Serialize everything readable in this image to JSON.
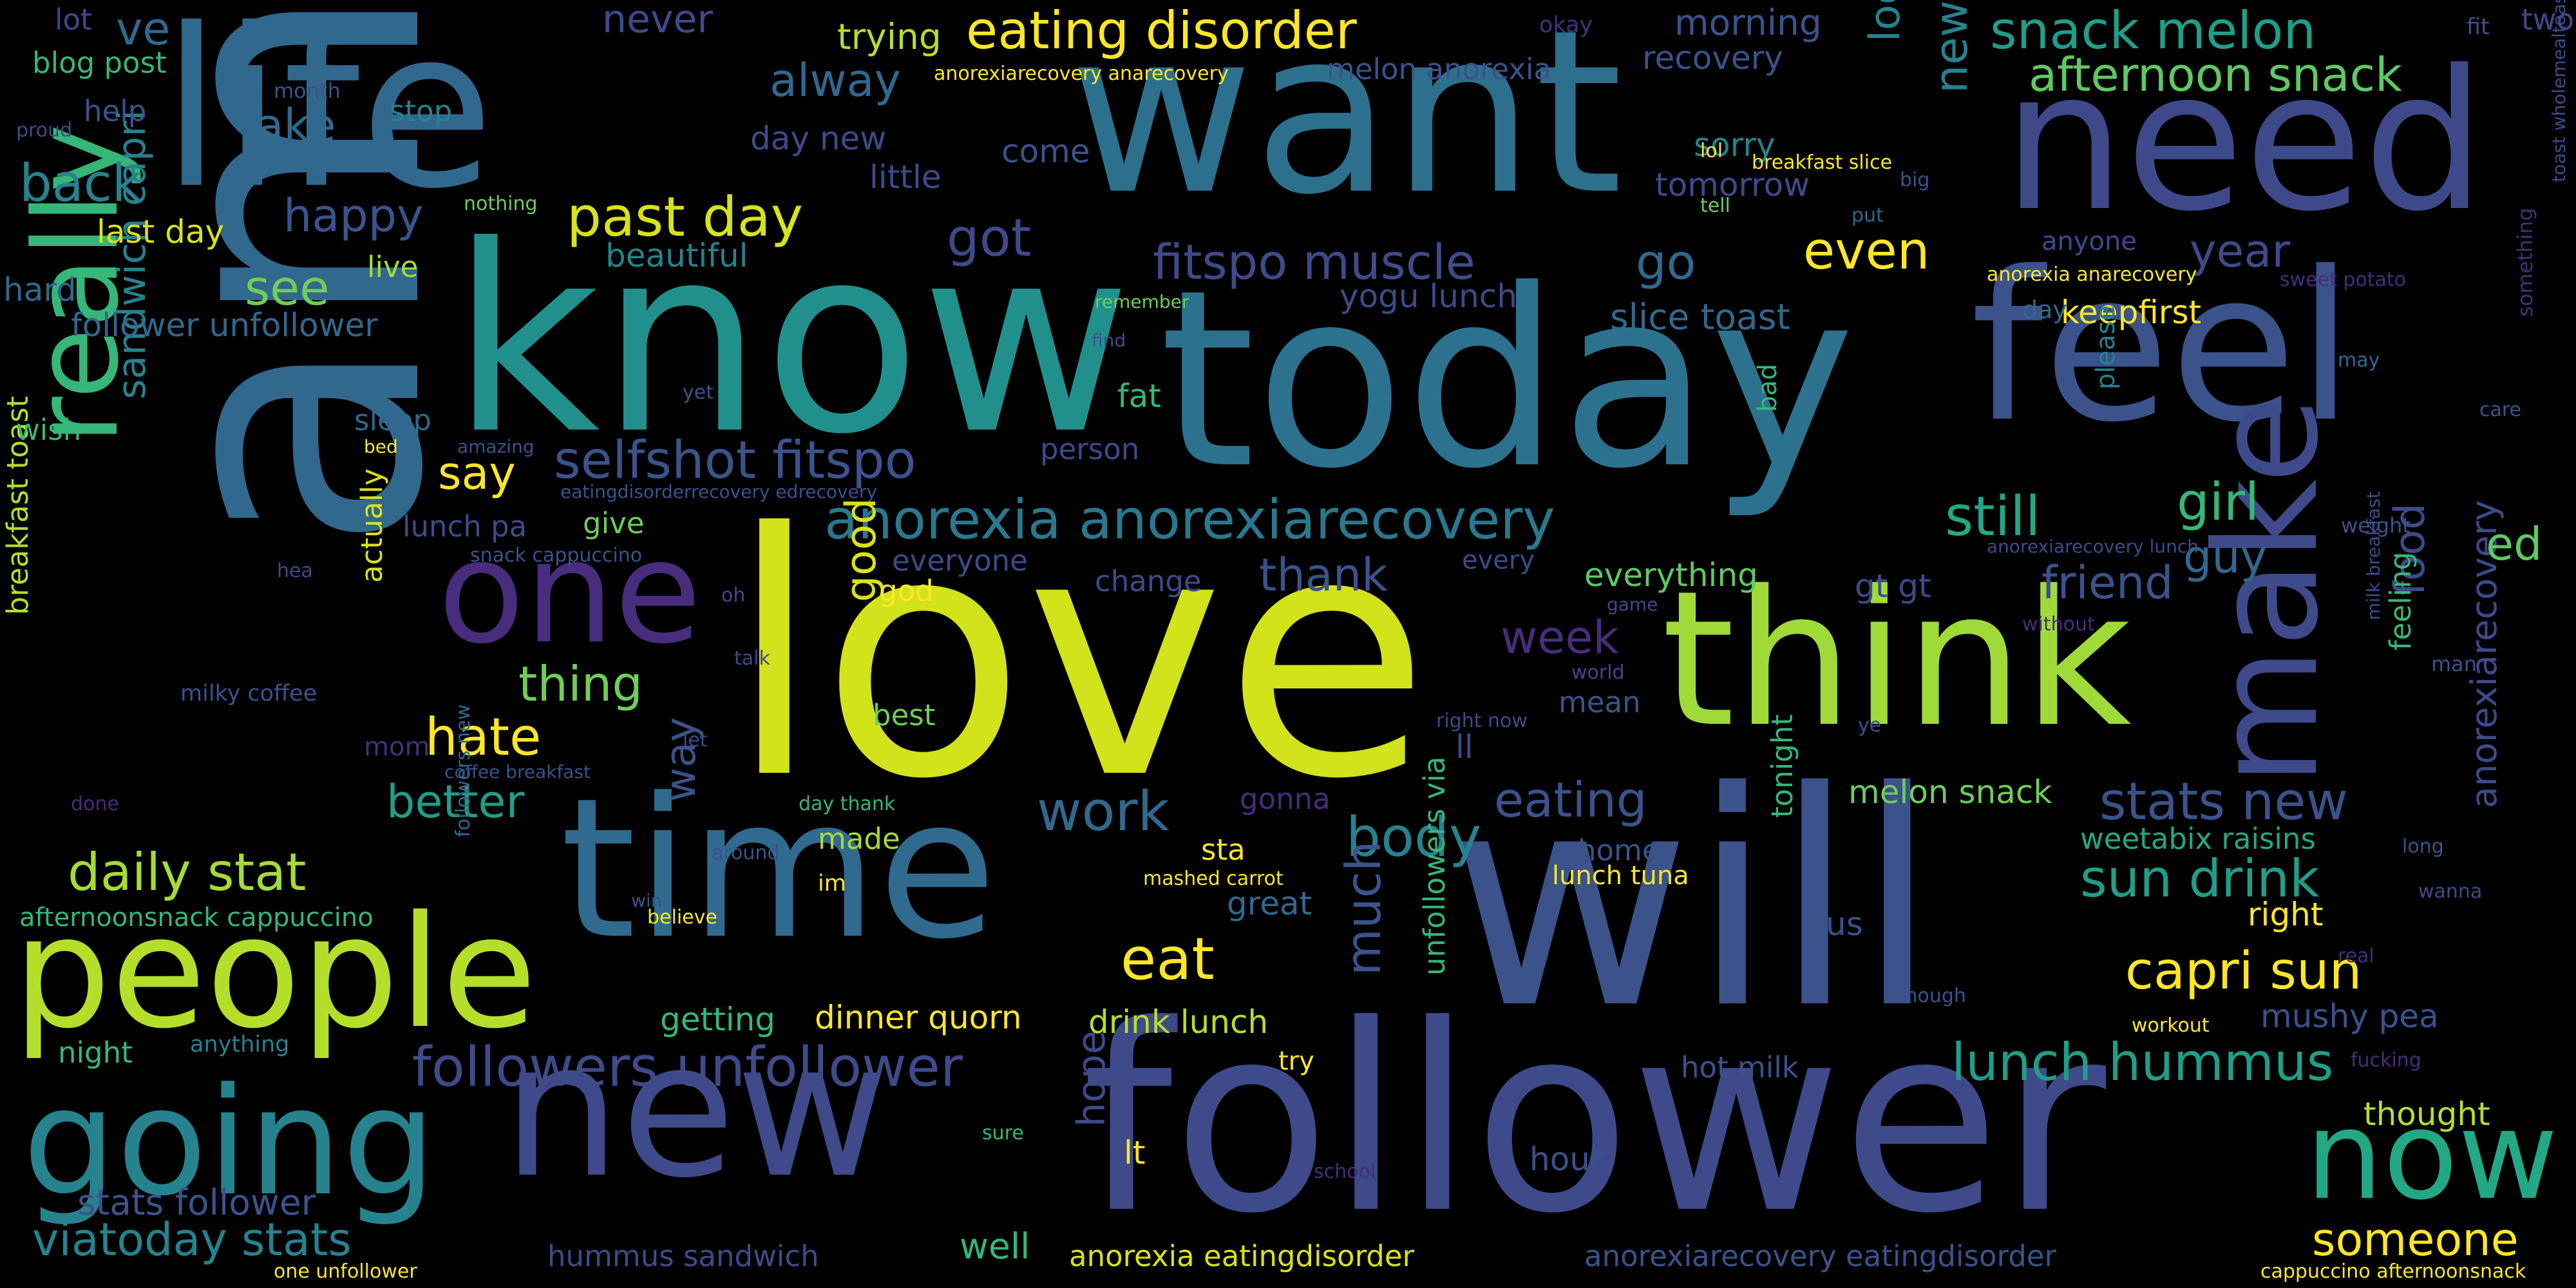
{
  "palette": {
    "dark_purple": "#472d7b",
    "indigo": "#3e4a89",
    "blue": "#31688e",
    "teal": "#26828e",
    "green_teal": "#1f9e89",
    "green": "#35b779",
    "light_green": "#6ece58",
    "lime": "#b5de2b",
    "yellow": "#fde725"
  },
  "words": [
    {
      "text": "amp",
      "color": "#31688e"
    },
    {
      "text": "love",
      "color": "#d2e21b"
    },
    {
      "text": "know",
      "color": "#21908d"
    },
    {
      "text": "today",
      "color": "#2c728e"
    },
    {
      "text": "will",
      "color": "#3b528b"
    },
    {
      "text": "follower",
      "color": "#3e4a89"
    },
    {
      "text": "want",
      "color": "#2d708e"
    },
    {
      "text": "life",
      "color": "#31688e"
    },
    {
      "text": "feel",
      "color": "#3b528b"
    },
    {
      "text": "need",
      "color": "#3e4989"
    },
    {
      "text": "think",
      "color": "#a0da39"
    },
    {
      "text": "time",
      "color": "#306a8e"
    },
    {
      "text": "new",
      "color": "#3e4a89"
    },
    {
      "text": "people",
      "color": "#b5de2b"
    },
    {
      "text": "really",
      "color": "#35b779"
    },
    {
      "text": "going",
      "color": "#26828e"
    },
    {
      "text": "one",
      "color": "#472d7b"
    },
    {
      "text": "make",
      "color": "#3e4a89"
    },
    {
      "text": "now",
      "color": "#22a884"
    },
    {
      "text": "eating disorder",
      "color": "#fde725"
    },
    {
      "text": "snack melon",
      "color": "#1f9e89"
    },
    {
      "text": "afternoon snack",
      "color": "#5ec962"
    },
    {
      "text": "past day",
      "color": "#d8e219"
    },
    {
      "text": "anorexia anorexiarecovery",
      "color": "#2a788e"
    },
    {
      "text": "selfshot fitspo",
      "color": "#3b528b"
    },
    {
      "text": "fitspo muscle",
      "color": "#3e4a89"
    },
    {
      "text": "new unfollower",
      "color": "#26828e"
    },
    {
      "text": "daily stat",
      "color": "#a5db36"
    },
    {
      "text": "capri sun",
      "color": "#fde725"
    },
    {
      "text": "followers unfollower",
      "color": "#3e4a89"
    },
    {
      "text": "stats new",
      "color": "#3b528b"
    },
    {
      "text": "sun drink",
      "color": "#1f9e89"
    },
    {
      "text": "lunch hummus",
      "color": "#1f9e89"
    },
    {
      "text": "viatoday stats",
      "color": "#26828e"
    },
    {
      "text": "stats follower",
      "color": "#3b528b"
    },
    {
      "text": "someone",
      "color": "#fde725"
    },
    {
      "text": "eat",
      "color": "#fde725"
    },
    {
      "text": "hate",
      "color": "#fde725"
    },
    {
      "text": "work",
      "color": "#31688e"
    },
    {
      "text": "body",
      "color": "#26828e"
    },
    {
      "text": "eating",
      "color": "#3b528b"
    },
    {
      "text": "much",
      "color": "#3b528b"
    },
    {
      "text": "sandwich capri",
      "color": "#26828e"
    },
    {
      "text": "breakfast toast",
      "color": "#b5de2b"
    },
    {
      "text": "anorexiarecovery",
      "color": "#3e4a89"
    },
    {
      "text": "food",
      "color": "#3e4a89"
    },
    {
      "text": "look",
      "color": "#26828e"
    },
    {
      "text": "alway",
      "color": "#31688e"
    },
    {
      "text": "back",
      "color": "#26828e"
    },
    {
      "text": "take",
      "color": "#31688e"
    },
    {
      "text": "ve",
      "color": "#31688e"
    },
    {
      "text": "happy",
      "color": "#3b528b"
    },
    {
      "text": "see",
      "color": "#6ece58"
    },
    {
      "text": "got",
      "color": "#3e4a89"
    },
    {
      "text": "go",
      "color": "#31688e"
    },
    {
      "text": "even",
      "color": "#fde725"
    },
    {
      "text": "year",
      "color": "#3e4a89"
    },
    {
      "text": "girl",
      "color": "#35b779"
    },
    {
      "text": "guy",
      "color": "#31688e"
    },
    {
      "text": "friend",
      "color": "#3b528b"
    },
    {
      "text": "still",
      "color": "#22a884"
    },
    {
      "text": "say",
      "color": "#fde725"
    },
    {
      "text": "thank",
      "color": "#3b528b"
    },
    {
      "text": "week",
      "color": "#472d7b"
    },
    {
      "text": "thing",
      "color": "#6ece58"
    },
    {
      "text": "better",
      "color": "#1f9e89"
    },
    {
      "text": "good",
      "color": "#d8e219"
    },
    {
      "text": "way",
      "color": "#3b528b"
    },
    {
      "text": "ed",
      "color": "#5ec962"
    },
    {
      "text": "hope",
      "color": "#3e4a89"
    },
    {
      "text": "trying",
      "color": "#b5de2b"
    },
    {
      "text": "never",
      "color": "#3e4a89"
    },
    {
      "text": "morning",
      "color": "#3b528b"
    },
    {
      "text": "recovery",
      "color": "#3b528b"
    },
    {
      "text": "sorry",
      "color": "#26828e"
    },
    {
      "text": "tomorrow",
      "color": "#3e4a89"
    },
    {
      "text": "melon anorexia",
      "color": "#3b528b"
    },
    {
      "text": "yogu lunch",
      "color": "#3e4a89"
    },
    {
      "text": "slice toast",
      "color": "#31688e"
    },
    {
      "text": "keepfirst",
      "color": "#fde725"
    },
    {
      "text": "day new",
      "color": "#3e4a89"
    },
    {
      "text": "little",
      "color": "#3e4a89"
    },
    {
      "text": "come",
      "color": "#3b528b"
    },
    {
      "text": "beautiful",
      "color": "#26828e"
    },
    {
      "text": "last day",
      "color": "#d8e219"
    },
    {
      "text": "hard",
      "color": "#31688e"
    },
    {
      "text": "follower unfollower",
      "color": "#31688e"
    },
    {
      "text": "live",
      "color": "#a5db36"
    },
    {
      "text": "lot",
      "color": "#3e4a89"
    },
    {
      "text": "blog post",
      "color": "#35b779"
    },
    {
      "text": "help",
      "color": "#3b528b"
    },
    {
      "text": "stop",
      "color": "#26828e"
    },
    {
      "text": "sleep",
      "color": "#31688e"
    },
    {
      "text": "wish",
      "color": "#35b779"
    },
    {
      "text": "lunch pa",
      "color": "#3e4a89"
    },
    {
      "text": "give",
      "color": "#6ece58"
    },
    {
      "text": "person",
      "color": "#3e4a89"
    },
    {
      "text": "fat",
      "color": "#35b779"
    },
    {
      "text": "change",
      "color": "#3e4a89"
    },
    {
      "text": "everyone",
      "color": "#3e4a89"
    },
    {
      "text": "god",
      "color": "#fde725"
    },
    {
      "text": "every",
      "color": "#3e4a89"
    },
    {
      "text": "everything",
      "color": "#5ec962"
    },
    {
      "text": "actually",
      "color": "#d8e219"
    },
    {
      "text": "milky coffee",
      "color": "#3b528b"
    },
    {
      "text": "best",
      "color": "#6ece58"
    },
    {
      "text": "mean",
      "color": "#3b528b"
    },
    {
      "text": "ll",
      "color": "#3e4a89"
    },
    {
      "text": "mom",
      "color": "#472d7b"
    },
    {
      "text": "made",
      "color": "#a5db36"
    },
    {
      "text": "gonna",
      "color": "#472d7b"
    },
    {
      "text": "sta",
      "color": "#fde725"
    },
    {
      "text": "home",
      "color": "#3b528b"
    },
    {
      "text": "melon snack",
      "color": "#6ece58"
    },
    {
      "text": "weetabix raisins",
      "color": "#22a884"
    },
    {
      "text": "right",
      "color": "#fde725"
    },
    {
      "text": "great",
      "color": "#31688e"
    },
    {
      "text": "lunch tuna",
      "color": "#fde725"
    },
    {
      "text": "us",
      "color": "#3b528b"
    },
    {
      "text": "tonight",
      "color": "#35b779"
    },
    {
      "text": "feeling",
      "color": "#35b779"
    },
    {
      "text": "thought",
      "color": "#b5de2b"
    },
    {
      "text": "mushy pea",
      "color": "#3b528b"
    },
    {
      "text": "getting",
      "color": "#35b779"
    },
    {
      "text": "dinner quorn",
      "color": "#fde725"
    },
    {
      "text": "drink lunch",
      "color": "#b5de2b"
    },
    {
      "text": "afternoonsnack cappuccino",
      "color": "#35b779"
    },
    {
      "text": "night",
      "color": "#35b779"
    },
    {
      "text": "anything",
      "color": "#26828e"
    },
    {
      "text": "hummus sandwich",
      "color": "#3e4a89"
    },
    {
      "text": "well",
      "color": "#35b779"
    },
    {
      "text": "anorexia eatingdisorder",
      "color": "#d8e219"
    },
    {
      "text": "anorexiarecovery eatingdisorder",
      "color": "#3b528b"
    },
    {
      "text": "hour",
      "color": "#3b528b"
    },
    {
      "text": "hot milk",
      "color": "#3b528b"
    },
    {
      "text": "unfollowers via",
      "color": "#35b779"
    },
    {
      "text": "lt",
      "color": "#fde725"
    },
    {
      "text": "try",
      "color": "#fde725"
    },
    {
      "text": "one unfollower",
      "color": "#fde725"
    },
    {
      "text": "cappuccino afternoonsnack",
      "color": "#fde725"
    },
    {
      "text": "followers new",
      "color": "#31688e"
    },
    {
      "text": "fit",
      "color": "#3b528b"
    },
    {
      "text": "two",
      "color": "#3e4a89"
    },
    {
      "text": "okay",
      "color": "#472d7b"
    },
    {
      "text": "anorexiarecovery anarecovery",
      "color": "#fde725"
    },
    {
      "text": "month",
      "color": "#3b528b"
    },
    {
      "text": "proud",
      "color": "#3e4a89"
    },
    {
      "text": "nothing",
      "color": "#6ece58"
    },
    {
      "text": "lol",
      "color": "#fde725"
    },
    {
      "text": "breakfast slice",
      "color": "#fde725"
    },
    {
      "text": "big",
      "color": "#3b528b"
    },
    {
      "text": "put",
      "color": "#31688e"
    },
    {
      "text": "tell",
      "color": "#6ece58"
    },
    {
      "text": "anyone",
      "color": "#3e4a89"
    },
    {
      "text": "anorexia anarecovery",
      "color": "#fde725"
    },
    {
      "text": "sweet potato",
      "color": "#472d7b"
    },
    {
      "text": "toast wholemealtoast",
      "color": "#3e4a89"
    },
    {
      "text": "something",
      "color": "#472d7b"
    },
    {
      "text": "remember",
      "color": "#6ece58"
    },
    {
      "text": "find",
      "color": "#3b528b"
    },
    {
      "text": "yet",
      "color": "#3b528b"
    },
    {
      "text": "day",
      "color": "#31688e"
    },
    {
      "text": "may",
      "color": "#31688e"
    },
    {
      "text": "please",
      "color": "#26828e"
    },
    {
      "text": "bad",
      "color": "#35b779"
    },
    {
      "text": "care",
      "color": "#3b528b"
    },
    {
      "text": "weight",
      "color": "#3b528b"
    },
    {
      "text": "amazing",
      "color": "#3b528b"
    },
    {
      "text": "bed",
      "color": "#fde725"
    },
    {
      "text": "eatingdisorderrecovery edrecovery",
      "color": "#3b528b"
    },
    {
      "text": "snack cappuccino",
      "color": "#3b528b"
    },
    {
      "text": "hea",
      "color": "#3e4a89"
    },
    {
      "text": "oh",
      "color": "#3e4a89"
    },
    {
      "text": "talk",
      "color": "#3e4a89"
    },
    {
      "text": "let",
      "color": "#3e4a89"
    },
    {
      "text": "coffee breakfast",
      "color": "#3b528b"
    },
    {
      "text": "done",
      "color": "#472d7b"
    },
    {
      "text": "around",
      "color": "#3b528b"
    },
    {
      "text": "day thank",
      "color": "#35b779"
    },
    {
      "text": "im",
      "color": "#fde725"
    },
    {
      "text": "win",
      "color": "#3b528b"
    },
    {
      "text": "believe",
      "color": "#fde725"
    },
    {
      "text": "mashed carrot",
      "color": "#fde725"
    },
    {
      "text": "right now",
      "color": "#3e4a89"
    },
    {
      "text": "world",
      "color": "#3e4a89"
    },
    {
      "text": "game",
      "color": "#3e4a89"
    },
    {
      "text": "ye",
      "color": "#3b528b"
    },
    {
      "text": "gt gt",
      "color": "#3e4a89"
    },
    {
      "text": "anorexiarecovery lunch",
      "color": "#3e4a89"
    },
    {
      "text": "without",
      "color": "#472d7b"
    },
    {
      "text": "milk breakfast",
      "color": "#3e4a89"
    },
    {
      "text": "man",
      "color": "#3b528b"
    },
    {
      "text": "long",
      "color": "#3b528b"
    },
    {
      "text": "wanna",
      "color": "#3e4a89"
    },
    {
      "text": "real",
      "color": "#472d7b"
    },
    {
      "text": "enough",
      "color": "#3b528b"
    },
    {
      "text": "workout",
      "color": "#fde725"
    },
    {
      "text": "fucking",
      "color": "#472d7b"
    },
    {
      "text": "school",
      "color": "#472d7b"
    },
    {
      "text": "sure",
      "color": "#35b779"
    }
  ]
}
